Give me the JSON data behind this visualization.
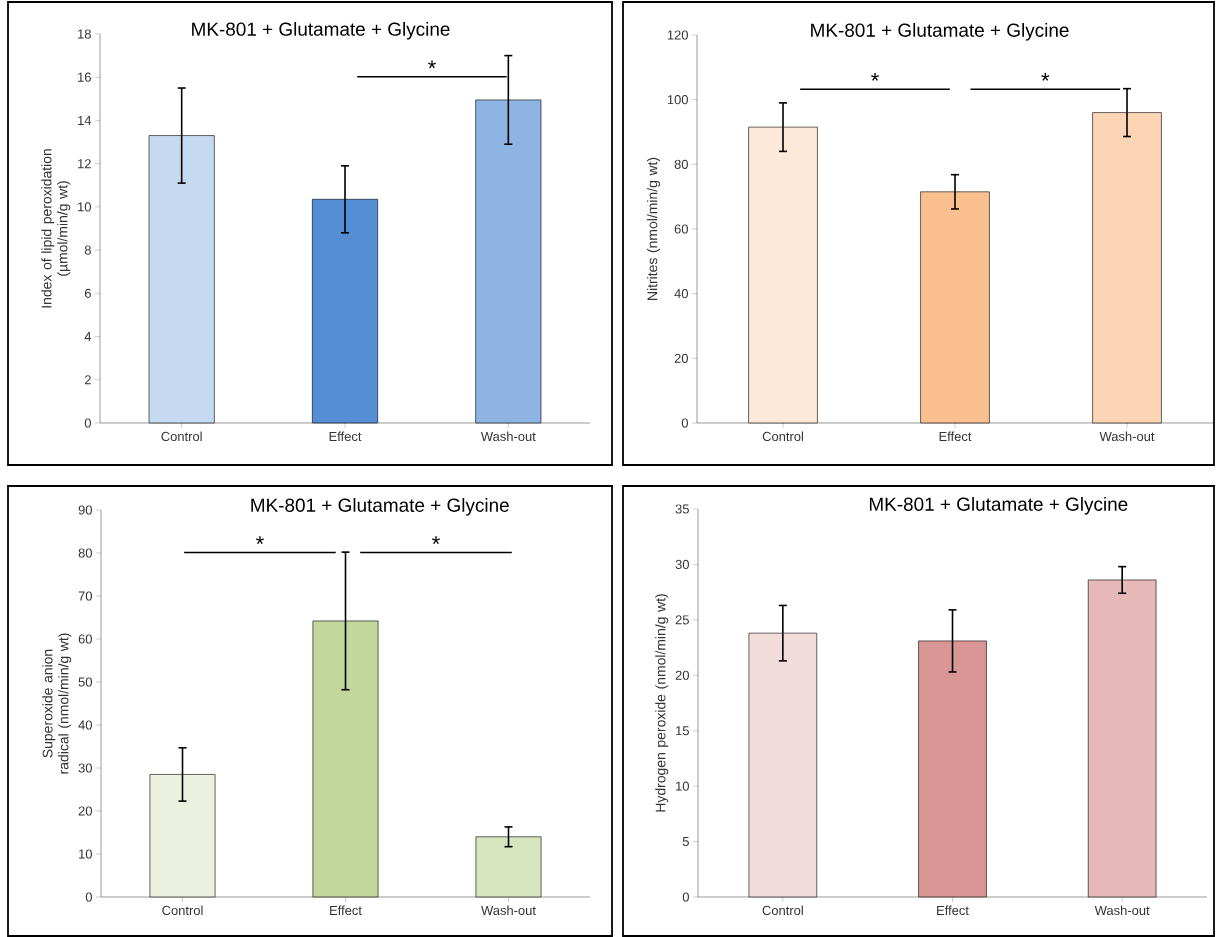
{
  "chart_data": [
    {
      "type": "bar",
      "title": "MK-801 + Glutamate + Glycine",
      "ylabel": "Index of lipid peroxidation (µmol/min/g wt)",
      "categories": [
        "Control",
        "Effect",
        "Wash-out"
      ],
      "values": [
        13.3,
        10.35,
        14.95
      ],
      "errors": [
        2.2,
        1.55,
        2.05
      ],
      "colors": [
        "#c5d9f1",
        "#558ed5",
        "#8eb4e3"
      ],
      "ylim": [
        0,
        18
      ],
      "yticks": [
        0,
        2,
        4,
        6,
        8,
        10,
        12,
        14,
        16,
        18
      ],
      "annotations": [
        "*"
      ]
    },
    {
      "type": "bar",
      "title": "MK-801 + Glutamate + Glycine",
      "ylabel": "Nitrites (nmol/min/g wt)",
      "categories": [
        "Control",
        "Effect",
        "Wash-out"
      ],
      "values": [
        91.5,
        71.5,
        96
      ],
      "errors": [
        7.5,
        5.3,
        7.4
      ],
      "colors": [
        "#fde9d9",
        "#fac090",
        "#fcd5b5"
      ],
      "ylim": [
        0,
        120
      ],
      "yticks": [
        0,
        20,
        40,
        60,
        80,
        100,
        120
      ],
      "annotations": [
        "*",
        "*"
      ]
    },
    {
      "type": "bar",
      "title": "MK-801 + Glutamate + Glycine",
      "ylabel": "Superoxide anion radical (nmol/min/g wt)",
      "categories": [
        "Control",
        "Effect",
        "Wash-out"
      ],
      "values": [
        28.5,
        64.2,
        14
      ],
      "errors": [
        6.2,
        16,
        2.3
      ],
      "colors": [
        "#ebf1de",
        "#c3d69b",
        "#d7e4bd"
      ],
      "ylim": [
        0,
        90
      ],
      "yticks": [
        0,
        10,
        20,
        30,
        40,
        50,
        60,
        70,
        80,
        90
      ],
      "annotations": [
        "*",
        "*"
      ]
    },
    {
      "type": "bar",
      "title": "MK-801 + Glutamate + Glycine",
      "ylabel": "Hydrogen peroxide (nmol/min/g wt)",
      "categories": [
        "Control",
        "Effect",
        "Wash-out"
      ],
      "values": [
        23.8,
        23.1,
        28.6
      ],
      "errors": [
        2.5,
        2.8,
        1.2
      ],
      "colors": [
        "#f2dcdb",
        "#d99694",
        "#e6b9b8"
      ],
      "ylim": [
        0,
        35
      ],
      "yticks": [
        0,
        5,
        10,
        15,
        20,
        25,
        30,
        35
      ]
    }
  ]
}
